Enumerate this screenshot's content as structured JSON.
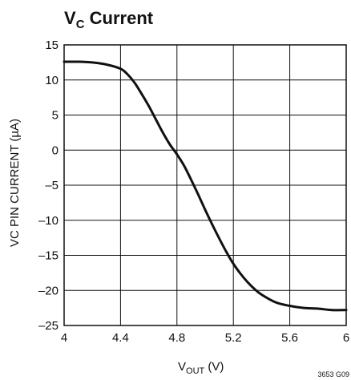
{
  "chart_data": {
    "type": "line",
    "title": {
      "main": "V",
      "sub": "C",
      "rest": " Current"
    },
    "xlabel": {
      "main": "V",
      "sub": "OUT",
      "rest": " (V)"
    },
    "ylabel": "VC PIN CURRENT (µA)",
    "footnote": "3653 G09",
    "xlim": [
      4,
      6
    ],
    "ylim": [
      -25,
      15
    ],
    "x_ticks": [
      4,
      4.4,
      4.8,
      5.2,
      5.6,
      6
    ],
    "x_tick_labels": [
      "4",
      "4.4",
      "4.8",
      "5.2",
      "5.6",
      "6"
    ],
    "y_ticks": [
      15,
      10,
      5,
      0,
      -5,
      -10,
      -15,
      -20,
      -25
    ],
    "y_tick_labels": [
      "15",
      "10",
      "5",
      "0",
      "–5",
      "–10",
      "–15",
      "–20",
      "–25"
    ],
    "grid": true,
    "colors": {
      "line": "#111111",
      "grid": "#111111"
    },
    "series": [
      {
        "x": [
          4.0,
          4.1,
          4.2,
          4.3,
          4.4,
          4.45,
          4.5,
          4.55,
          4.6,
          4.65,
          4.7,
          4.75,
          4.8,
          4.85,
          4.9,
          4.95,
          5.0,
          5.05,
          5.1,
          5.15,
          5.2,
          5.25,
          5.3,
          5.35,
          5.4,
          5.5,
          5.6,
          5.7,
          5.8,
          5.9,
          6.0
        ],
        "y": [
          12.6,
          12.6,
          12.5,
          12.2,
          11.6,
          10.8,
          9.6,
          8.0,
          6.3,
          4.4,
          2.5,
          0.8,
          -0.6,
          -2.2,
          -4.2,
          -6.3,
          -8.5,
          -10.6,
          -12.6,
          -14.5,
          -16.2,
          -17.6,
          -18.8,
          -19.8,
          -20.6,
          -21.7,
          -22.2,
          -22.5,
          -22.6,
          -22.8,
          -22.8
        ]
      }
    ]
  }
}
